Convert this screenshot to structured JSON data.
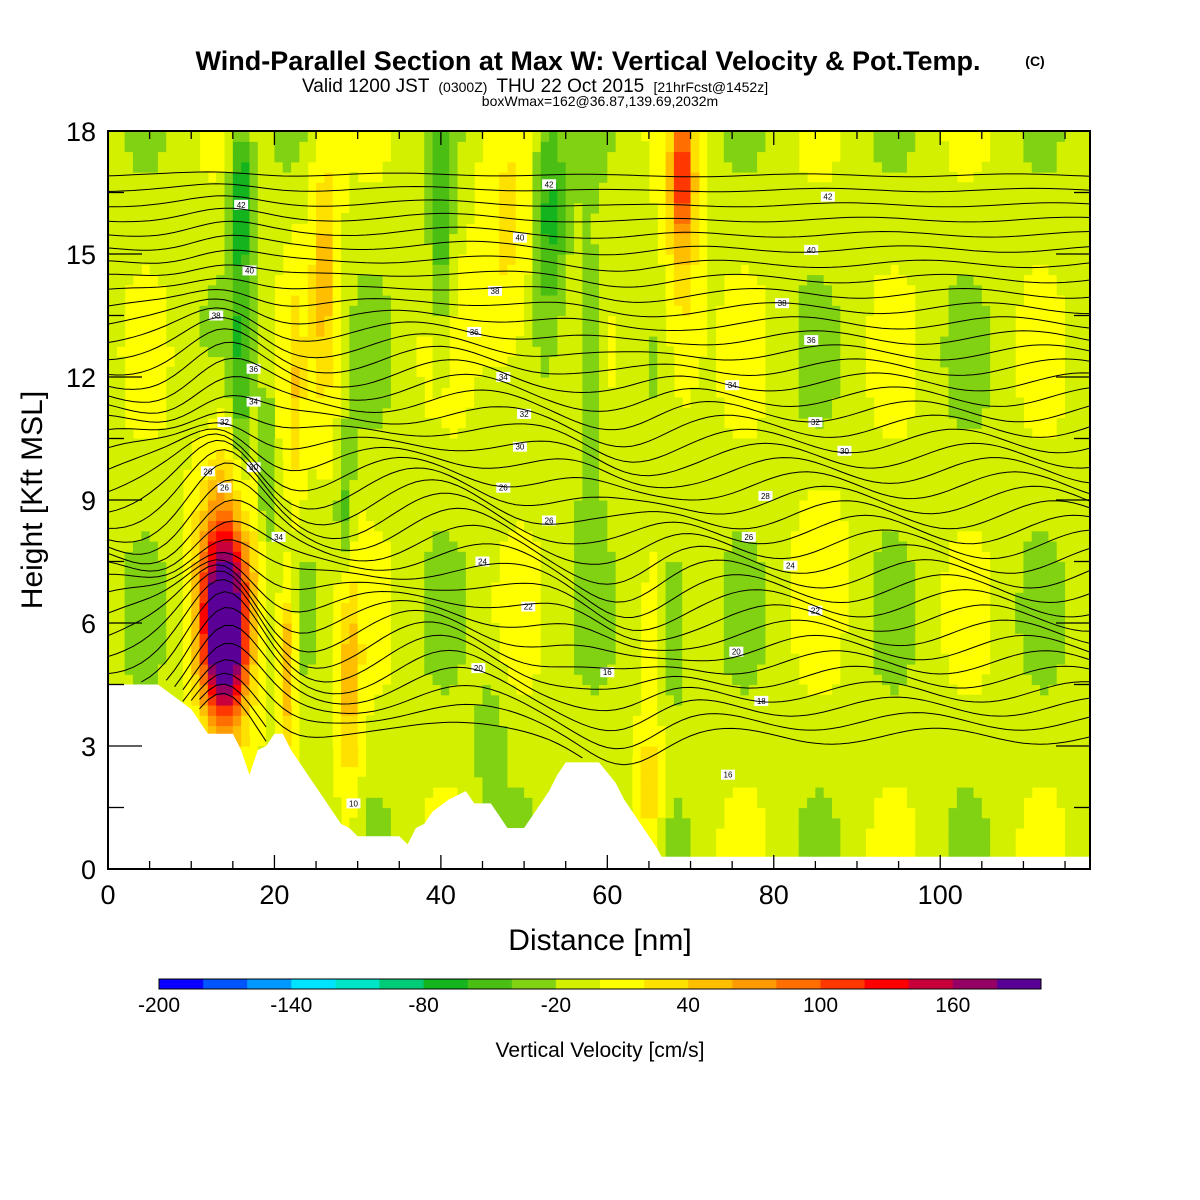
{
  "header": {
    "title": "Wind-Parallel Section at Max W: Vertical Velocity & Pot.Temp.",
    "copyright": "(C)",
    "valid_main": "Valid 1200 JST",
    "valid_utc": "(0300Z)",
    "valid_date": "THU 22 Oct 2015",
    "forecast": "[21hrFcst@1452z]",
    "boxline": "boxWmax=162@36.87,139.69,2032m"
  },
  "colors": {
    "terrain": "#ffffff",
    "background_field": "#ffff00",
    "contour_line": "#000000"
  },
  "chart_data": {
    "type": "heatmap",
    "xlabel": "Distance [nm]",
    "ylabel": "Height [Kft MSL]",
    "xlim": [
      0,
      118
    ],
    "ylim": [
      0,
      18
    ],
    "x_ticks": [
      0,
      20,
      40,
      60,
      80,
      100
    ],
    "y_ticks": [
      0,
      3,
      6,
      9,
      12,
      15,
      18
    ],
    "colorbar": {
      "label": "Vertical Velocity [cm/s]",
      "levels": [
        -200,
        -180,
        -160,
        -140,
        -120,
        -100,
        -80,
        -60,
        -40,
        -20,
        0,
        20,
        40,
        60,
        80,
        100,
        120,
        140,
        160,
        180,
        200
      ],
      "colors": [
        "#0a00ff",
        "#0055ff",
        "#0099ff",
        "#00e5ff",
        "#00e5c8",
        "#00cc78",
        "#14b41e",
        "#4bbe14",
        "#82d214",
        "#d2f000",
        "#ffff00",
        "#ffe100",
        "#ffbe00",
        "#ff9b00",
        "#ff6e00",
        "#ff3700",
        "#ff0000",
        "#c8003c",
        "#960064",
        "#5a0096"
      ],
      "tick_labels": [
        -200,
        -140,
        -80,
        -20,
        40,
        100,
        160
      ]
    },
    "terrain_profile": [
      [
        0,
        4.5
      ],
      [
        6,
        4.5
      ],
      [
        8,
        4.2
      ],
      [
        10,
        3.9
      ],
      [
        12,
        3.3
      ],
      [
        15,
        3.3
      ],
      [
        16,
        2.9
      ],
      [
        17,
        2.3
      ],
      [
        18,
        2.9
      ],
      [
        19,
        3.0
      ],
      [
        20,
        3.3
      ],
      [
        21,
        3.3
      ],
      [
        22,
        2.9
      ],
      [
        23,
        2.6
      ],
      [
        24,
        2.3
      ],
      [
        25,
        2.0
      ],
      [
        26,
        1.7
      ],
      [
        27,
        1.4
      ],
      [
        28,
        1.1
      ],
      [
        29,
        1.0
      ],
      [
        30,
        0.8
      ],
      [
        33,
        0.8
      ],
      [
        35,
        0.8
      ],
      [
        36,
        0.6
      ],
      [
        37,
        1.0
      ],
      [
        38,
        1.1
      ],
      [
        39,
        1.4
      ],
      [
        41,
        1.7
      ],
      [
        43,
        1.9
      ],
      [
        44,
        1.6
      ],
      [
        46,
        1.6
      ],
      [
        48,
        1.0
      ],
      [
        50,
        1.0
      ],
      [
        51,
        1.3
      ],
      [
        52,
        1.6
      ],
      [
        53,
        1.9
      ],
      [
        54,
        2.3
      ],
      [
        55,
        2.6
      ],
      [
        59,
        2.6
      ],
      [
        61,
        2.1
      ],
      [
        62,
        1.7
      ],
      [
        63,
        1.4
      ],
      [
        64,
        1.1
      ],
      [
        65,
        0.8
      ],
      [
        66,
        0.5
      ],
      [
        66.5,
        0.3
      ],
      [
        118,
        0.3
      ]
    ],
    "velocity_features": [
      {
        "x": 14,
        "y": 5.8,
        "rx": 2.4,
        "ry": 2.0,
        "w": 162
      },
      {
        "x": 14,
        "y": 6.4,
        "rx": 3.2,
        "ry": 3.0,
        "w": 100
      },
      {
        "x": 14,
        "y": 7.0,
        "rx": 3.5,
        "ry": 4.0,
        "w": 30
      },
      {
        "x": 26,
        "y": 14.5,
        "rx": 1.7,
        "ry": 3.5,
        "w": 60
      },
      {
        "x": 22.5,
        "y": 11.5,
        "rx": 1.1,
        "ry": 3.0,
        "w": 40
      },
      {
        "x": 21.5,
        "y": 5.0,
        "rx": 1.0,
        "ry": 2.0,
        "w": 80
      },
      {
        "x": 29,
        "y": 4.5,
        "rx": 1.5,
        "ry": 3.0,
        "w": 60
      },
      {
        "x": 48,
        "y": 15.0,
        "rx": 3.5,
        "ry": 3.0,
        "w": 40
      },
      {
        "x": 69,
        "y": 17.0,
        "rx": 1.3,
        "ry": 1.5,
        "w": 100
      },
      {
        "x": 69,
        "y": 15.0,
        "rx": 2.2,
        "ry": 3.5,
        "w": 50
      },
      {
        "x": 65,
        "y": 2.0,
        "rx": 1.5,
        "ry": 1.5,
        "w": 60
      },
      {
        "x": 16,
        "y": 16.5,
        "rx": 1.3,
        "ry": 1.5,
        "w": -60
      },
      {
        "x": 16,
        "y": 12.5,
        "rx": 1.2,
        "ry": 4.0,
        "w": -50
      },
      {
        "x": 19,
        "y": 10.0,
        "rx": 0.8,
        "ry": 2.0,
        "w": -40
      },
      {
        "x": 28.5,
        "y": 8.5,
        "rx": 1.0,
        "ry": 1.8,
        "w": -40
      },
      {
        "x": 40,
        "y": 16.0,
        "rx": 1.2,
        "ry": 3.0,
        "w": -50
      },
      {
        "x": 53,
        "y": 16.0,
        "rx": 2.0,
        "ry": 2.5,
        "w": -60
      },
      {
        "x": 58,
        "y": 12.0,
        "rx": 1.5,
        "ry": 3.0,
        "w": -40
      },
      {
        "x": 68,
        "y": 6.0,
        "rx": 1.5,
        "ry": 2.0,
        "w": -40
      },
      {
        "x": 46,
        "y": 3.0,
        "rx": 1.5,
        "ry": 1.5,
        "w": -30
      },
      {
        "x": 86,
        "y": 8.0,
        "rx": 3.0,
        "ry": 2.0,
        "w": 10
      }
    ],
    "theta_contours": [
      {
        "base": 10.0,
        "label": "10",
        "lx": 29.5,
        "ly": 1.6
      },
      {
        "base": 12.6,
        "label": "16",
        "lx": 74.5,
        "ly": 2.3
      },
      {
        "base": 13.2,
        "label": "18",
        "lx": 78.5,
        "ly": 4.1
      },
      {
        "base": 13.8,
        "label": "16",
        "lx": 60,
        "ly": 4.8
      },
      {
        "base": 14.4,
        "label": "20",
        "lx": 44.5,
        "ly": 4.9
      },
      {
        "base": 15.0,
        "label": "20",
        "lx": 75.5,
        "ly": 5.3
      },
      {
        "base": 15.6,
        "label": "22",
        "lx": 85,
        "ly": 6.3
      },
      {
        "base": 16.2,
        "label": "22",
        "lx": 50.5,
        "ly": 6.4
      },
      {
        "base": 16.8,
        "label": "24",
        "lx": 82,
        "ly": 7.4
      },
      {
        "base": 17.4,
        "label": "24",
        "lx": 45,
        "ly": 7.5
      },
      {
        "base": 18.0,
        "label": "26",
        "lx": 77,
        "ly": 8.1
      },
      {
        "base": 18.6,
        "label": "34",
        "lx": 20.5,
        "ly": 8.1
      },
      {
        "base": 19.2,
        "label": "26",
        "lx": 53,
        "ly": 8.5
      },
      {
        "base": 19.8,
        "label": "28",
        "lx": 79,
        "ly": 9.1
      },
      {
        "base": 20.4,
        "label": "26",
        "lx": 47.5,
        "ly": 9.3
      },
      {
        "base": 21.0,
        "label": "26",
        "lx": 14,
        "ly": 9.3
      },
      {
        "base": 21.6,
        "label": "26",
        "lx": 12,
        "ly": 9.7
      },
      {
        "base": 22.2,
        "label": "30",
        "lx": 17.5,
        "ly": 9.8
      },
      {
        "base": 22.8,
        "label": "30",
        "lx": 49.5,
        "ly": 10.3
      },
      {
        "base": 23.4,
        "label": "30",
        "lx": 88.5,
        "ly": 10.2
      },
      {
        "base": 24.0,
        "label": "32",
        "lx": 50,
        "ly": 11.1
      },
      {
        "base": 24.6,
        "label": "32",
        "lx": 14,
        "ly": 10.9
      },
      {
        "base": 25.2,
        "label": "32",
        "lx": 85,
        "ly": 10.9
      },
      {
        "base": 25.8,
        "label": "34",
        "lx": 17.5,
        "ly": 11.4
      },
      {
        "base": 26.4,
        "label": "34",
        "lx": 47.5,
        "ly": 12.0
      },
      {
        "base": 27.0,
        "label": "34",
        "lx": 75,
        "ly": 11.8
      },
      {
        "base": 27.6,
        "label": "36",
        "lx": 17.5,
        "ly": 12.2
      },
      {
        "base": 28.2,
        "label": "36",
        "lx": 84.5,
        "ly": 12.9
      },
      {
        "base": 28.8,
        "label": "36",
        "lx": 44,
        "ly": 13.1
      },
      {
        "base": 29.4,
        "label": "38",
        "lx": 13,
        "ly": 13.5
      },
      {
        "base": 30.0,
        "label": "38",
        "lx": 81,
        "ly": 13.8
      },
      {
        "base": 30.6,
        "label": "38",
        "lx": 46.5,
        "ly": 14.1
      },
      {
        "base": 31.2,
        "label": "40",
        "lx": 17,
        "ly": 14.6
      },
      {
        "base": 31.8,
        "label": "40",
        "lx": 84.5,
        "ly": 15.1
      },
      {
        "base": 32.4,
        "label": "40",
        "lx": 49.5,
        "ly": 15.4
      },
      {
        "base": 33.0,
        "label": "42",
        "lx": 16,
        "ly": 16.2
      },
      {
        "base": 33.6,
        "label": "42",
        "lx": 86.5,
        "ly": 16.4
      },
      {
        "base": 34.2,
        "label": "42",
        "lx": 53,
        "ly": 16.7
      },
      {
        "base": 34.8,
        "label": "",
        "lx": 0,
        "ly": 0
      },
      {
        "base": 35.4,
        "label": "",
        "lx": 0,
        "ly": 0
      },
      {
        "base": 36.0,
        "label": "",
        "lx": 0,
        "ly": 0
      },
      {
        "base": 36.6,
        "label": "",
        "lx": 0,
        "ly": 0
      },
      {
        "base": 37.2,
        "label": "",
        "lx": 0,
        "ly": 0
      }
    ]
  }
}
